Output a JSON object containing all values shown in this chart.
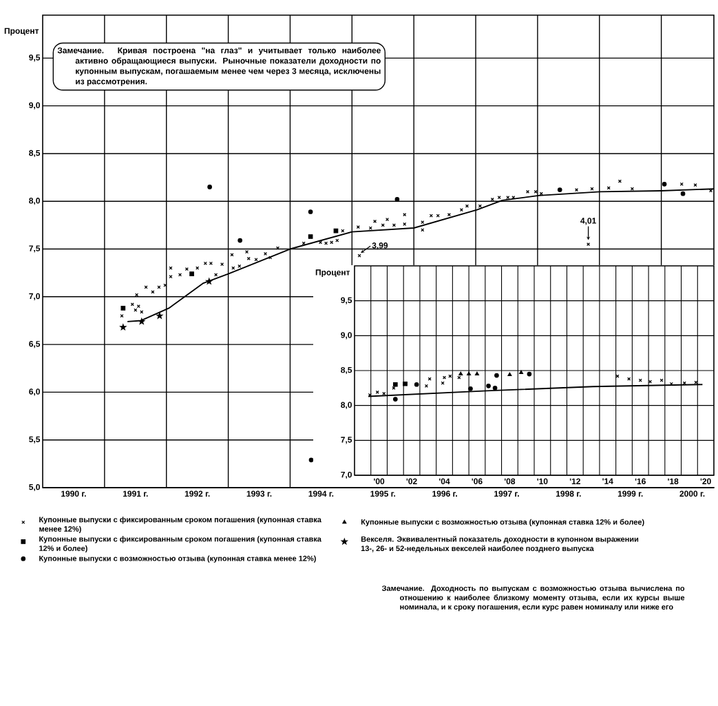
{
  "chart_data": [
    {
      "type": "scatter",
      "ylabel": "Процент",
      "xlim": [
        1990,
        2000.85
      ],
      "ylim": [
        5.0,
        9.95
      ],
      "xticks": [
        {
          "value": 1990.5,
          "label": "1990 г."
        },
        {
          "value": 1991,
          "label": null
        },
        {
          "value": 1991.5,
          "label": "1991 г."
        },
        {
          "value": 1992,
          "label": null
        },
        {
          "value": 1992.5,
          "label": "1992 г."
        },
        {
          "value": 1993,
          "label": null
        },
        {
          "value": 1993.5,
          "label": "1993 г."
        },
        {
          "value": 1994,
          "label": null
        },
        {
          "value": 1994.5,
          "label": "1994 г."
        },
        {
          "value": 1995,
          "label": null
        },
        {
          "value": 1995.5,
          "label": "1995 г."
        },
        {
          "value": 1996,
          "label": null
        },
        {
          "value": 1996.5,
          "label": "1996 г."
        },
        {
          "value": 1997,
          "label": null
        },
        {
          "value": 1997.5,
          "label": "1997 г."
        },
        {
          "value": 1998,
          "label": null
        },
        {
          "value": 1998.5,
          "label": "1998 г."
        },
        {
          "value": 1999,
          "label": null
        },
        {
          "value": 1999.5,
          "label": "1999 г."
        },
        {
          "value": 2000,
          "label": null
        },
        {
          "value": 2000.5,
          "label": "2000 г."
        }
      ],
      "yticks": [
        {
          "value": 5.0,
          "label": "5,0"
        },
        {
          "value": 5.5,
          "label": "5,5"
        },
        {
          "value": 6.0,
          "label": "6,0"
        },
        {
          "value": 6.5,
          "label": "6,5"
        },
        {
          "value": 7.0,
          "label": "7,0"
        },
        {
          "value": 7.5,
          "label": "7,5"
        },
        {
          "value": 8.0,
          "label": "8,0"
        },
        {
          "value": 8.5,
          "label": "8,5"
        },
        {
          "value": 9.0,
          "label": "9,0"
        },
        {
          "value": 9.5,
          "label": "9,5"
        }
      ],
      "grid": true,
      "legend": "bottom",
      "series": [
        {
          "name": "Купонные выпуски с фиксированным сроком погашения (купонная ставка менее 12%)",
          "type": "scatter",
          "marker": "cross",
          "color": "#000000",
          "x": [
            1991.28,
            1991.45,
            1991.5,
            1991.55,
            1991.6,
            1991.52,
            1991.67,
            1991.78,
            1991.88,
            1991.98,
            1992.07,
            1992.07,
            1992.22,
            1992.33,
            1992.5,
            1992.63,
            1992.72,
            1992.8,
            1992.9,
            1993.06,
            1993.08,
            1993.18,
            1993.3,
            1993.33,
            1993.45,
            1993.6,
            1993.68,
            1993.8,
            1994.22,
            1994.49,
            1994.58,
            1994.67,
            1994.76,
            1994.85,
            1995.1,
            1995.12,
            1995.3,
            1995.37,
            1995.5,
            1995.57,
            1995.68,
            1995.85,
            1995.85,
            1996.14,
            1996.14,
            1996.28,
            1996.39,
            1996.57,
            1996.77,
            1996.86,
            1997.07,
            1997.27,
            1997.38,
            1997.52,
            1997.61,
            1997.84,
            1997.97,
            1998.06,
            1998.63,
            1998.82,
            1998.88,
            1999.15,
            1999.33,
            1999.53,
            2000.33,
            2000.55,
            2000.8
          ],
          "values": [
            6.8,
            6.92,
            6.86,
            6.9,
            6.84,
            7.02,
            7.1,
            7.05,
            7.1,
            7.12,
            7.21,
            7.3,
            7.23,
            7.29,
            7.3,
            7.35,
            7.35,
            7.23,
            7.34,
            7.44,
            7.3,
            7.32,
            7.47,
            7.4,
            7.39,
            7.45,
            7.41,
            7.51,
            7.56,
            7.57,
            7.56,
            7.57,
            7.59,
            7.69,
            7.73,
            7.43,
            7.72,
            7.79,
            7.75,
            7.81,
            7.75,
            7.76,
            7.86,
            7.78,
            7.7,
            7.85,
            7.85,
            7.86,
            7.91,
            7.95,
            7.95,
            8.02,
            8.04,
            8.04,
            8.04,
            8.1,
            8.1,
            8.08,
            8.12,
            7.55,
            8.13,
            8.14,
            8.21,
            8.13,
            8.18,
            8.17,
            8.11
          ]
        },
        {
          "name": "Купонные выпуски с фиксированным сроком погашения (купонная ставка 12% и более)",
          "type": "scatter",
          "marker": "square",
          "color": "#000000",
          "x": [
            1991.3,
            1992.41,
            1994.33,
            1994.74
          ],
          "values": [
            6.88,
            7.24,
            7.63,
            7.69
          ]
        },
        {
          "name": "Купонные выпуски с возможностью отзыва (купонная ставка менее 12%)",
          "type": "scatter",
          "marker": "circle",
          "color": "#000000",
          "x": [
            1992.7,
            1993.19,
            1994.33,
            1994.34,
            1995.73,
            1998.36,
            2000.05,
            2000.35
          ],
          "values": [
            8.15,
            7.59,
            7.89,
            5.29,
            8.02,
            8.12,
            8.18,
            8.08
          ]
        },
        {
          "name": "Купонные выпуски с возможностью отзыва (купонная ставка 12% и более)",
          "type": "scatter",
          "marker": "triangle",
          "color": "#000000"
        },
        {
          "name": "Векселя. Эквивалентный показатель доходности в купонном выражении 13-, 26- и 52-недельных векселей наиболее позднего выпуска",
          "type": "scatter",
          "marker": "star",
          "color": "#000000",
          "x": [
            1991.3,
            1991.6,
            1991.89,
            1992.69
          ],
          "values": [
            6.68,
            6.74,
            6.8,
            7.16
          ]
        },
        {
          "type": "line",
          "marker": "none",
          "line_style": "solid",
          "color": "#000000",
          "x": [
            1991.37,
            1991.59,
            1992.04,
            1992.59,
            1993.0,
            1994.0,
            1995.0,
            1996.0,
            1997.02,
            1997.43,
            1998.02,
            1999.01,
            2000.0,
            2000.85
          ],
          "values": [
            6.74,
            6.75,
            6.88,
            7.14,
            7.24,
            7.5,
            7.68,
            7.72,
            7.91,
            8.01,
            8.06,
            8.1,
            8.11,
            8.13
          ]
        }
      ],
      "annotations": [
        "Замечание. Кривая построена \"на глаз\" и учитывает только наиболее активно обращающиеся выпуски. Рыночные показатели доходности по купонным выпускам, погашаемым менее чем через 3 месяца, исключены из рассмотрения.",
        {
          "text": "3,99",
          "x": 1995.12,
          "y": 7.43
        },
        {
          "text": "4,01",
          "x": 1998.82,
          "y": 7.55
        },
        "Замечание. Доходность по выпускам с возможностью отзыва вычислена по отношению к наиболее близкому моменту отзыва, если их курсы выше номинала, и к сроку погашения, если курс равен номиналу или ниже его"
      ]
    },
    {
      "type": "scatter",
      "ylabel": "Процент",
      "xlim": [
        -1.5,
        20.5
      ],
      "ylim": [
        7.0,
        10.0
      ],
      "xticks": [
        {
          "value": -0.5,
          "label": null
        },
        {
          "value": 0,
          "label": "'00"
        },
        {
          "value": 0.5,
          "label": null
        },
        {
          "value": 1.5,
          "label": null
        },
        {
          "value": 2,
          "label": "'02"
        },
        {
          "value": 2.5,
          "label": null
        },
        {
          "value": 3.5,
          "label": null
        },
        {
          "value": 4,
          "label": "'04"
        },
        {
          "value": 4.5,
          "label": null
        },
        {
          "value": 5.5,
          "label": null
        },
        {
          "value": 6,
          "label": "'06"
        },
        {
          "value": 6.5,
          "label": null
        },
        {
          "value": 7.5,
          "label": null
        },
        {
          "value": 8,
          "label": "'08"
        },
        {
          "value": 8.5,
          "label": null
        },
        {
          "value": 9.5,
          "label": null
        },
        {
          "value": 10,
          "label": "'10"
        },
        {
          "value": 10.5,
          "label": null
        },
        {
          "value": 11.5,
          "label": null
        },
        {
          "value": 12,
          "label": "'12"
        },
        {
          "value": 12.5,
          "label": null
        },
        {
          "value": 13.5,
          "label": null
        },
        {
          "value": 14,
          "label": "'14"
        },
        {
          "value": 14.5,
          "label": null
        },
        {
          "value": 15.5,
          "label": null
        },
        {
          "value": 16,
          "label": "'16"
        },
        {
          "value": 16.5,
          "label": null
        },
        {
          "value": 17.5,
          "label": null
        },
        {
          "value": 18,
          "label": "'18"
        },
        {
          "value": 18.5,
          "label": null
        },
        {
          "value": 19.5,
          "label": null
        },
        {
          "value": 20,
          "label": "'20"
        }
      ],
      "yticks": [
        {
          "value": 7.0,
          "label": "7,0"
        },
        {
          "value": 7.5,
          "label": "7,5"
        },
        {
          "value": 8.0,
          "label": "8,0"
        },
        {
          "value": 8.5,
          "label": "8,5"
        },
        {
          "value": 9.0,
          "label": "9,0"
        },
        {
          "value": 9.5,
          "label": "9,5"
        }
      ],
      "grid": true,
      "series": [
        {
          "type": "scatter",
          "marker": "cross",
          "color": "#000000",
          "x": [
            -0.56,
            -0.1,
            0.3,
            0.9,
            2.9,
            3.1,
            3.9,
            4.0,
            4.35,
            4.9,
            14.6,
            15.3,
            16.0,
            16.6,
            17.3,
            17.9,
            18.7,
            19.4
          ],
          "values": [
            8.15,
            8.19,
            8.17,
            8.25,
            8.28,
            8.38,
            8.32,
            8.4,
            8.42,
            8.4,
            8.42,
            8.38,
            8.36,
            8.34,
            8.36,
            8.31,
            8.32,
            8.33
          ]
        },
        {
          "type": "scatter",
          "marker": "square",
          "color": "#000000",
          "x": [
            1.0,
            1.6
          ],
          "values": [
            8.3,
            8.31
          ]
        },
        {
          "type": "scatter",
          "marker": "circle",
          "color": "#000000",
          "x": [
            1.0,
            2.3,
            5.6,
            6.7,
            7.1,
            7.2,
            9.2
          ],
          "values": [
            8.09,
            8.3,
            8.24,
            8.28,
            8.25,
            8.43,
            8.45
          ]
        },
        {
          "type": "scatter",
          "marker": "triangle",
          "color": "#000000",
          "x": [
            5.0,
            5.5,
            6.0,
            8.0,
            8.7
          ],
          "values": [
            8.45,
            8.45,
            8.45,
            8.44,
            8.47
          ]
        },
        {
          "type": "line",
          "marker": "none",
          "line_style": "solid",
          "color": "#000000",
          "x": [
            -0.65,
            6.6,
            13.1,
            19.8
          ],
          "values": [
            8.13,
            8.21,
            8.27,
            8.3
          ]
        }
      ]
    }
  ]
}
